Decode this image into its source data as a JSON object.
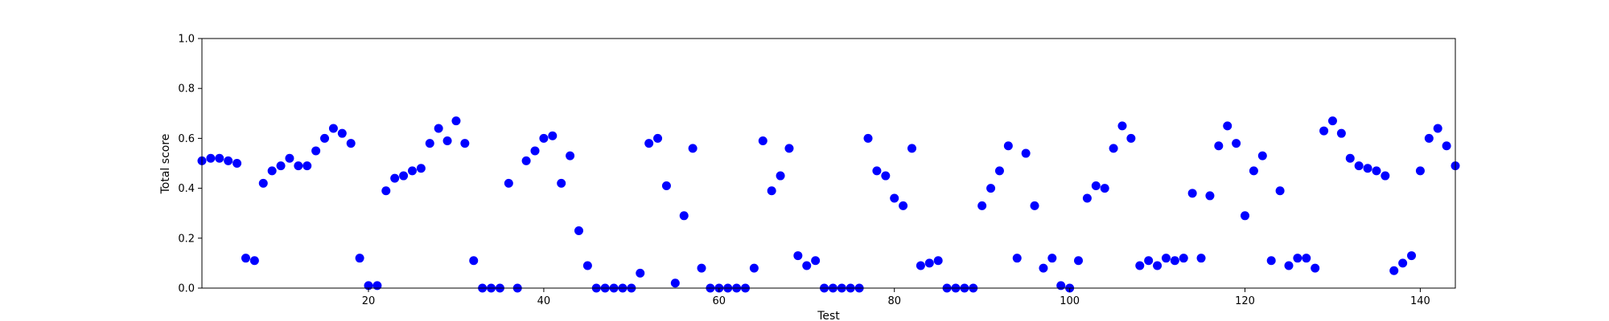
{
  "chart_data": {
    "type": "scatter",
    "title": "",
    "xlabel": "Test",
    "ylabel": "Total score",
    "xlim": [
      1,
      144
    ],
    "ylim": [
      0.0,
      1.0
    ],
    "xticks": [
      20,
      40,
      60,
      80,
      100,
      120,
      140
    ],
    "yticks": [
      0.0,
      0.2,
      0.4,
      0.6,
      0.8,
      1.0
    ],
    "grid": false,
    "marker_color": "#0000ff",
    "series": [
      {
        "x": [
          1,
          2,
          3,
          4,
          5,
          6,
          7,
          8,
          9,
          10,
          11,
          12,
          13,
          14,
          15,
          16,
          17,
          18,
          19,
          20,
          21,
          22,
          23,
          24,
          25,
          26,
          27,
          28,
          29,
          30,
          31,
          32,
          33,
          34,
          35,
          36,
          37,
          38,
          39,
          40,
          41,
          42,
          43,
          44,
          45,
          46,
          47,
          48,
          49,
          50,
          51,
          52,
          53,
          54,
          55,
          56,
          57,
          58,
          59,
          60,
          61,
          62,
          63,
          64,
          65,
          66,
          67,
          68,
          69,
          70,
          71,
          72,
          73,
          74,
          75,
          76,
          77,
          78,
          79,
          80,
          81,
          82,
          83,
          84,
          85,
          86,
          87,
          88,
          89,
          90,
          91,
          92,
          93,
          94,
          95,
          96,
          97,
          98,
          99,
          100,
          101,
          102,
          103,
          104,
          105,
          106,
          107,
          108,
          109,
          110,
          111,
          112,
          113,
          114,
          115,
          116,
          117,
          118,
          119,
          120,
          121,
          122,
          123,
          124,
          125,
          126,
          127,
          128,
          129,
          130,
          131,
          132,
          133,
          134,
          135,
          136,
          137,
          138,
          139,
          140,
          141,
          142,
          143,
          144
        ],
        "y": [
          0.51,
          0.52,
          0.52,
          0.51,
          0.5,
          0.12,
          0.11,
          0.42,
          0.47,
          0.49,
          0.52,
          0.49,
          0.49,
          0.55,
          0.6,
          0.64,
          0.62,
          0.58,
          0.12,
          0.01,
          0.01,
          0.39,
          0.44,
          0.45,
          0.47,
          0.48,
          0.58,
          0.64,
          0.59,
          0.67,
          0.58,
          0.11,
          0.0,
          0.0,
          0.0,
          0.42,
          0.0,
          0.51,
          0.55,
          0.6,
          0.61,
          0.42,
          0.53,
          0.23,
          0.09,
          0.0,
          0.0,
          0.0,
          0.0,
          0.0,
          0.06,
          0.58,
          0.6,
          0.41,
          0.02,
          0.29,
          0.56,
          0.08,
          0.0,
          0.0,
          0.0,
          0.0,
          0.0,
          0.08,
          0.59,
          0.39,
          0.45,
          0.56,
          0.13,
          0.09,
          0.11,
          0.0,
          0.0,
          0.0,
          0.0,
          0.0,
          0.6,
          0.47,
          0.45,
          0.36,
          0.33,
          0.56,
          0.09,
          0.1,
          0.11,
          0.0,
          0.0,
          0.0,
          0.0,
          0.33,
          0.4,
          0.47,
          0.57,
          0.12,
          0.54,
          0.33,
          0.08,
          0.12,
          0.01,
          0.0,
          0.11,
          0.36,
          0.41,
          0.4,
          0.56,
          0.65,
          0.6,
          0.09,
          0.11,
          0.09,
          0.12,
          0.11,
          0.12,
          0.38,
          0.12,
          0.37,
          0.57,
          0.65,
          0.58,
          0.29,
          0.47,
          0.53,
          0.11,
          0.39,
          0.09,
          0.12,
          0.12,
          0.08,
          0.63,
          0.67,
          0.62,
          0.52,
          0.49,
          0.48,
          0.47,
          0.45,
          0.07,
          0.1,
          0.13,
          0.47,
          0.6,
          0.64,
          0.57,
          0.49
        ]
      }
    ]
  }
}
